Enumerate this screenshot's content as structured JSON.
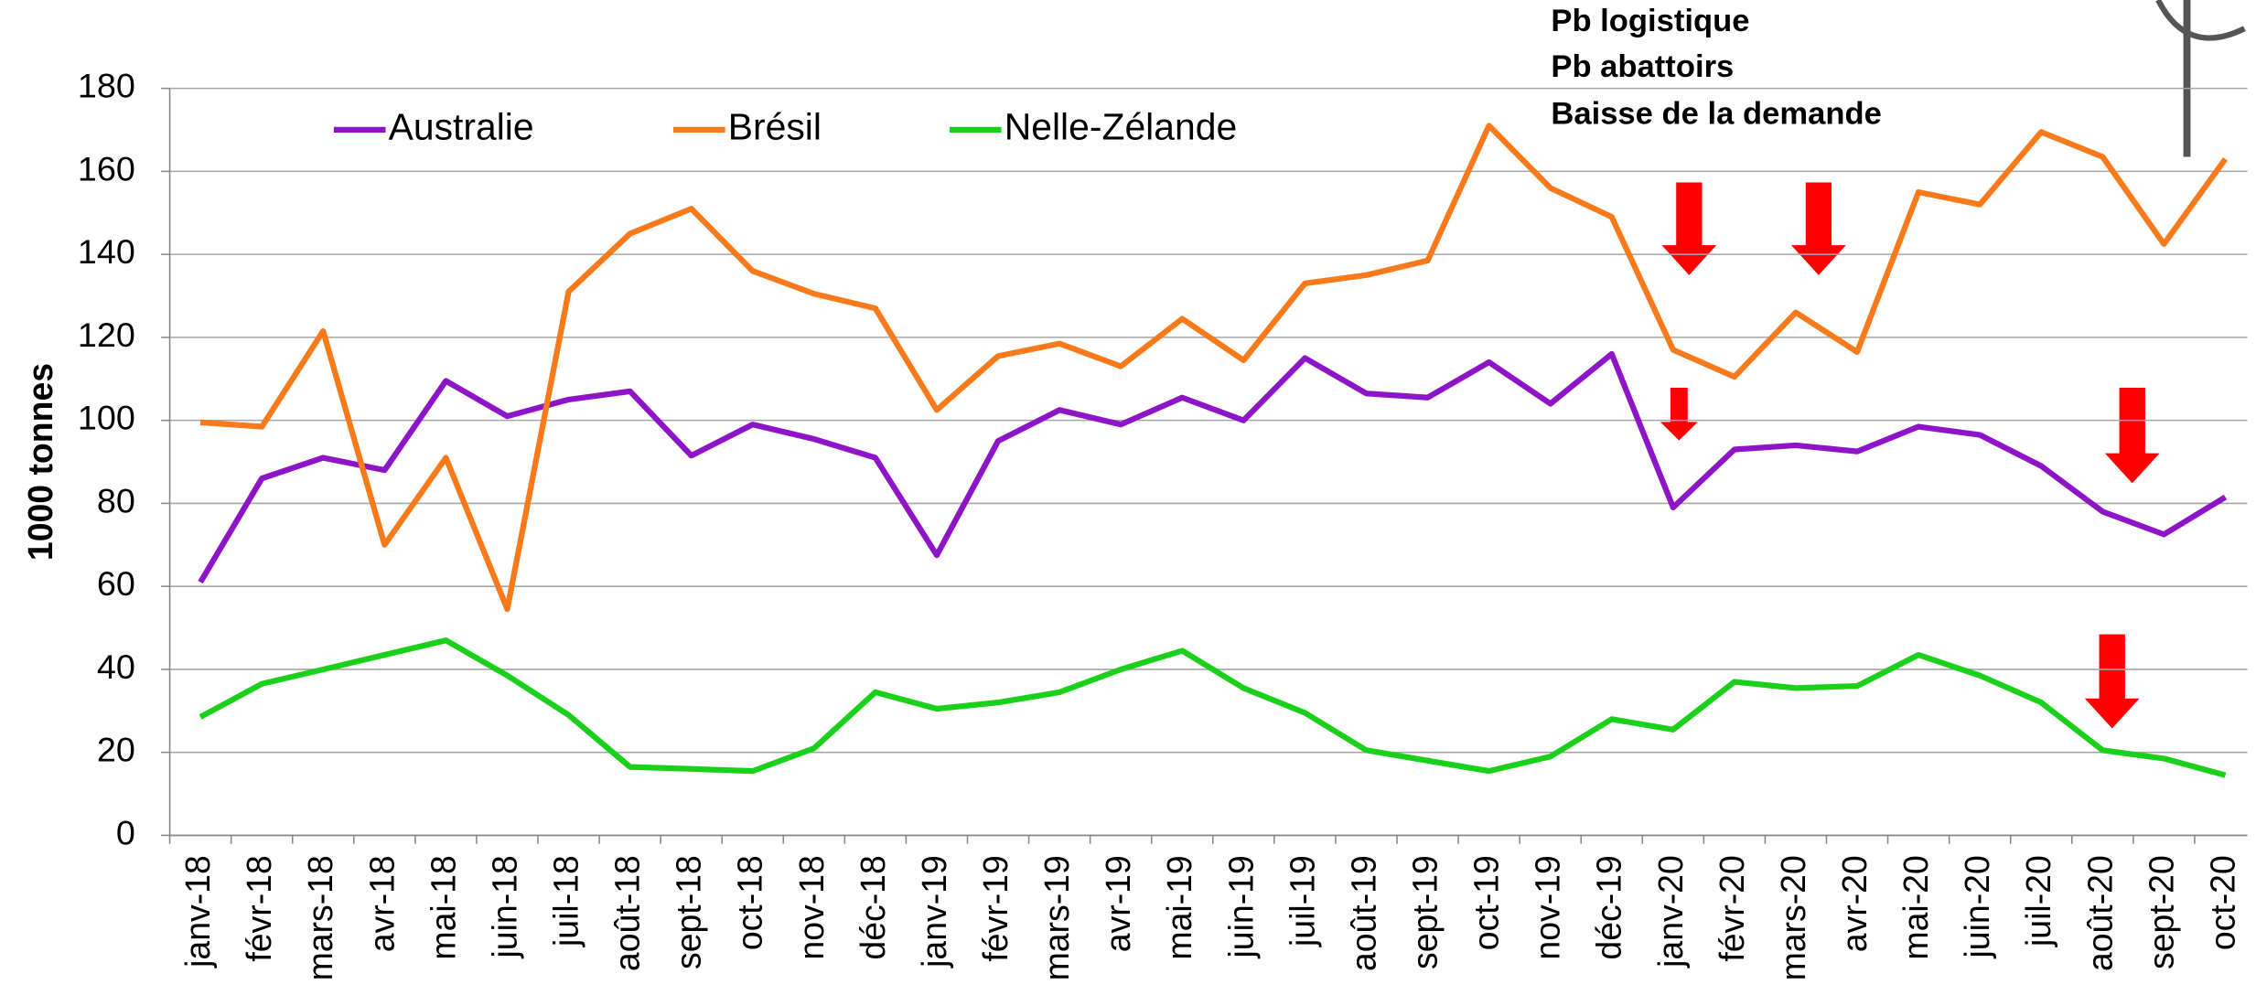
{
  "chart_data": {
    "type": "line",
    "y_label": "1000 tonnes",
    "annotations": [
      "Pb logistique",
      "Pb abattoirs",
      "Baisse de la demande"
    ],
    "categories": [
      "janv-18",
      "févr-18",
      "mars-18",
      "avr-18",
      "mai-18",
      "juin-18",
      "juil-18",
      "août-18",
      "sept-18",
      "oct-18",
      "nov-18",
      "déc-18",
      "janv-19",
      "févr-19",
      "mars-19",
      "avr-19",
      "mai-19",
      "juin-19",
      "juil-19",
      "août-19",
      "sept-19",
      "oct-19",
      "nov-19",
      "déc-19",
      "janv-20",
      "févr-20",
      "mars-20",
      "avr-20",
      "mai-20",
      "juin-20",
      "juil-20",
      "août-20",
      "sept-20",
      "oct-20"
    ],
    "series": [
      {
        "name": "Australie",
        "color": "#8e14c8",
        "values": [
          61,
          86,
          91,
          88,
          109.5,
          101,
          105,
          107,
          91.5,
          99,
          95.5,
          91,
          67.5,
          95,
          102.5,
          99,
          105.5,
          100,
          115,
          106.5,
          105.5,
          114,
          104,
          116,
          79,
          93,
          94,
          92.5,
          98.5,
          96.5,
          89,
          78,
          72.5,
          81.5
        ]
      },
      {
        "name": "Brésil",
        "color": "#f97a1a",
        "values": [
          99.5,
          98.5,
          121.5,
          70,
          91,
          54.5,
          131,
          145,
          151,
          136,
          130.5,
          127,
          102.5,
          115.5,
          118.5,
          113,
          124.5,
          114.5,
          133,
          135,
          138.5,
          171,
          156,
          149,
          117,
          110.5,
          126,
          116.5,
          155,
          152,
          169.5,
          163.5,
          142.5,
          163
        ]
      },
      {
        "name": "Nelle-Zélande",
        "color": "#1ad01a",
        "values": [
          28.5,
          36.5,
          40,
          43.5,
          47,
          38.5,
          29,
          16.5,
          16,
          15.5,
          21,
          34.5,
          30.5,
          32,
          34.5,
          40,
          44.5,
          35.5,
          29.5,
          20.5,
          18,
          15.5,
          19,
          28,
          25.5,
          37,
          35.5,
          36,
          43.5,
          38.5,
          32,
          20.5,
          18.5,
          14.5
        ]
      }
    ],
    "ylim": [
      0,
      180
    ],
    "yticks": [
      0,
      20,
      40,
      60,
      80,
      100,
      120,
      140,
      160,
      180
    ],
    "grid": true,
    "legend": "top"
  }
}
